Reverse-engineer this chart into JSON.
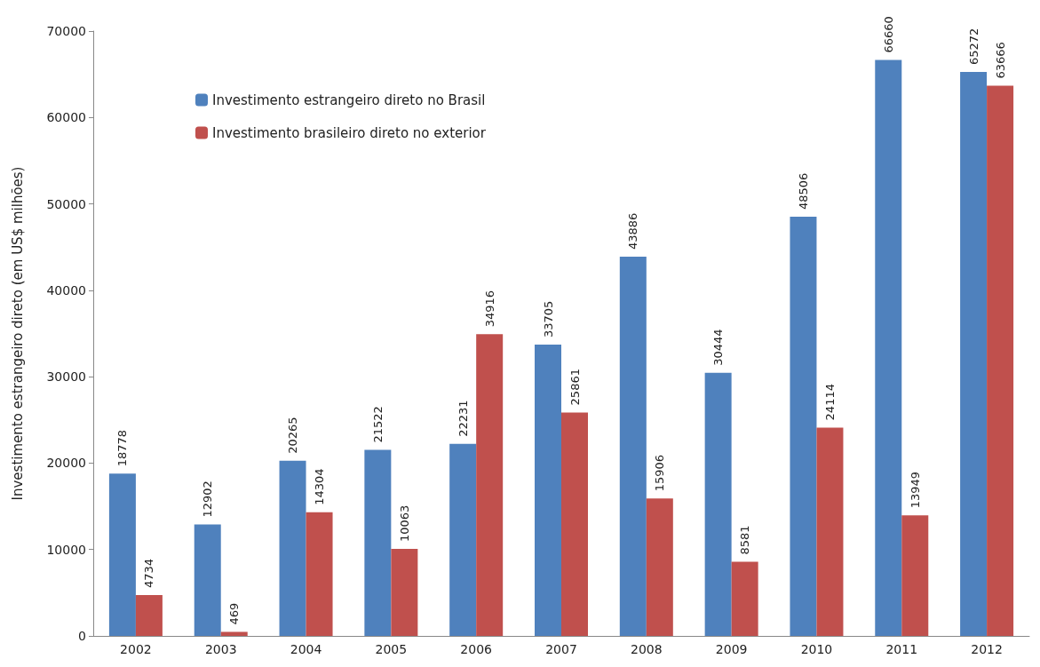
{
  "chart_data": {
    "type": "bar",
    "ylabel": "Investimento estrangeiro direto (em US$ milhões)",
    "categories": [
      "2002",
      "2003",
      "2004",
      "2005",
      "2006",
      "2007",
      "2008",
      "2009",
      "2010",
      "2011",
      "2012"
    ],
    "series": [
      {
        "name": "Investimento estrangeiro direto no Brasil",
        "color": "#4f81bd",
        "values": [
          18778,
          12902,
          20265,
          21522,
          22231,
          33705,
          43886,
          30444,
          48506,
          66660,
          65272
        ]
      },
      {
        "name": "Investimento brasileiro direto no exterior",
        "color": "#c0504d",
        "values": [
          4734,
          469,
          14304,
          10063,
          34916,
          25861,
          15906,
          8581,
          24114,
          13949,
          63666
        ]
      }
    ],
    "ylim": [
      0,
      70000
    ],
    "yticks": [
      0,
      10000,
      20000,
      30000,
      40000,
      50000,
      60000,
      70000
    ],
    "data_labels": true,
    "grid": false,
    "legend": "top left"
  }
}
